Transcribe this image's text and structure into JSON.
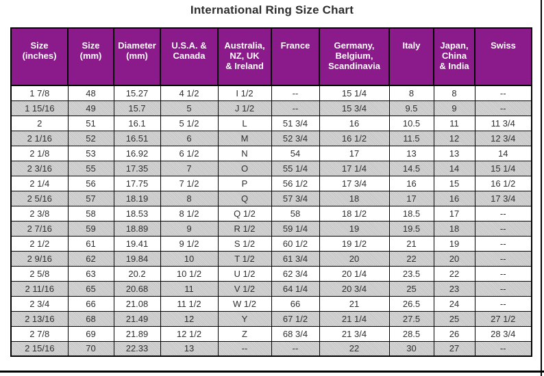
{
  "title": "International Ring Size Chart",
  "colors": {
    "header_bg": "#8B1A8B",
    "header_text": "#FFFFFF",
    "row_alt_bg": "#C9C9C9",
    "border": "#000000",
    "text": "#2E2E2E"
  },
  "table": {
    "header_lines": [
      [
        "Size",
        "(inches)"
      ],
      [
        "Size",
        "(mm)"
      ],
      [
        "Diameter",
        "(mm)"
      ],
      [
        "U.S.A. &",
        "Canada"
      ],
      [
        "Australia,",
        "NZ, UK",
        "& Ireland"
      ],
      [
        "France"
      ],
      [
        "Germany,",
        "Belgium,",
        "Scandinavia"
      ],
      [
        "Italy"
      ],
      [
        "Japan,",
        "China",
        "& India"
      ],
      [
        "Swiss"
      ]
    ],
    "empty_value": "--"
  },
  "chart_data": {
    "type": "table",
    "title": "International Ring Size Chart",
    "columns": [
      "Size (inches)",
      "Size (mm)",
      "Diameter (mm)",
      "U.S.A. & Canada",
      "Australia, NZ, UK & Ireland",
      "France",
      "Germany, Belgium, Scandinavia",
      "Italy",
      "Japan, China & India",
      "Swiss"
    ],
    "rows": [
      [
        "1 7/8",
        "48",
        "15.27",
        "4 1/2",
        "I 1/2",
        "--",
        "15 1/4",
        "8",
        "8",
        "--"
      ],
      [
        "1 15/16",
        "49",
        "15.7",
        "5",
        "J 1/2",
        "--",
        "15 3/4",
        "9.5",
        "9",
        "--"
      ],
      [
        "2",
        "51",
        "16.1",
        "5 1/2",
        "L",
        "51 3/4",
        "16",
        "10.5",
        "11",
        "11 3/4"
      ],
      [
        "2 1/16",
        "52",
        "16.51",
        "6",
        "M",
        "52 3/4",
        "16 1/2",
        "11.5",
        "12",
        "12 3/4"
      ],
      [
        "2 1/8",
        "53",
        "16.92",
        "6 1/2",
        "N",
        "54",
        "17",
        "13",
        "13",
        "14"
      ],
      [
        "2 3/16",
        "55",
        "17.35",
        "7",
        "O",
        "55 1/4",
        "17 1/4",
        "14.5",
        "14",
        "15 1/4"
      ],
      [
        "2 1/4",
        "56",
        "17.75",
        "7 1/2",
        "P",
        "56 1/2",
        "17 3/4",
        "16",
        "15",
        "16 1/2"
      ],
      [
        "2 5/16",
        "57",
        "18.19",
        "8",
        "Q",
        "57 3/4",
        "18",
        "17",
        "16",
        "17 3/4"
      ],
      [
        "2 3/8",
        "58",
        "18.53",
        "8 1/2",
        "Q 1/2",
        "58",
        "18 1/2",
        "18.5",
        "17",
        "--"
      ],
      [
        "2 7/16",
        "59",
        "18.89",
        "9",
        "R 1/2",
        "59 1/4",
        "19",
        "19.5",
        "18",
        "--"
      ],
      [
        "2 1/2",
        "61",
        "19.41",
        "9 1/2",
        "S 1/2",
        "60 1/2",
        "19 1/2",
        "21",
        "19",
        "--"
      ],
      [
        "2 9/16",
        "62",
        "19.84",
        "10",
        "T 1/2",
        "61 3/4",
        "20",
        "22",
        "20",
        "--"
      ],
      [
        "2 5/8",
        "63",
        "20.2",
        "10 1/2",
        "U 1/2",
        "62 3/4",
        "20 1/4",
        "23.5",
        "22",
        "--"
      ],
      [
        "2 11/16",
        "65",
        "20.68",
        "11",
        "V 1/2",
        "64 1/4",
        "20 3/4",
        "25",
        "23",
        "--"
      ],
      [
        "2 3/4",
        "66",
        "21.08",
        "11 1/2",
        "W 1/2",
        "66",
        "21",
        "26.5",
        "24",
        "--"
      ],
      [
        "2 13/16",
        "68",
        "21.49",
        "12",
        "Y",
        "67 1/2",
        "21 1/4",
        "27.5",
        "25",
        "27 1/2"
      ],
      [
        "2 7/8",
        "69",
        "21.89",
        "12 1/2",
        "Z",
        "68 3/4",
        "21 3/4",
        "28.5",
        "26",
        "28 3/4"
      ],
      [
        "2 15/16",
        "70",
        "22.33",
        "13",
        "--",
        "--",
        "22",
        "30",
        "27",
        "--"
      ]
    ]
  }
}
